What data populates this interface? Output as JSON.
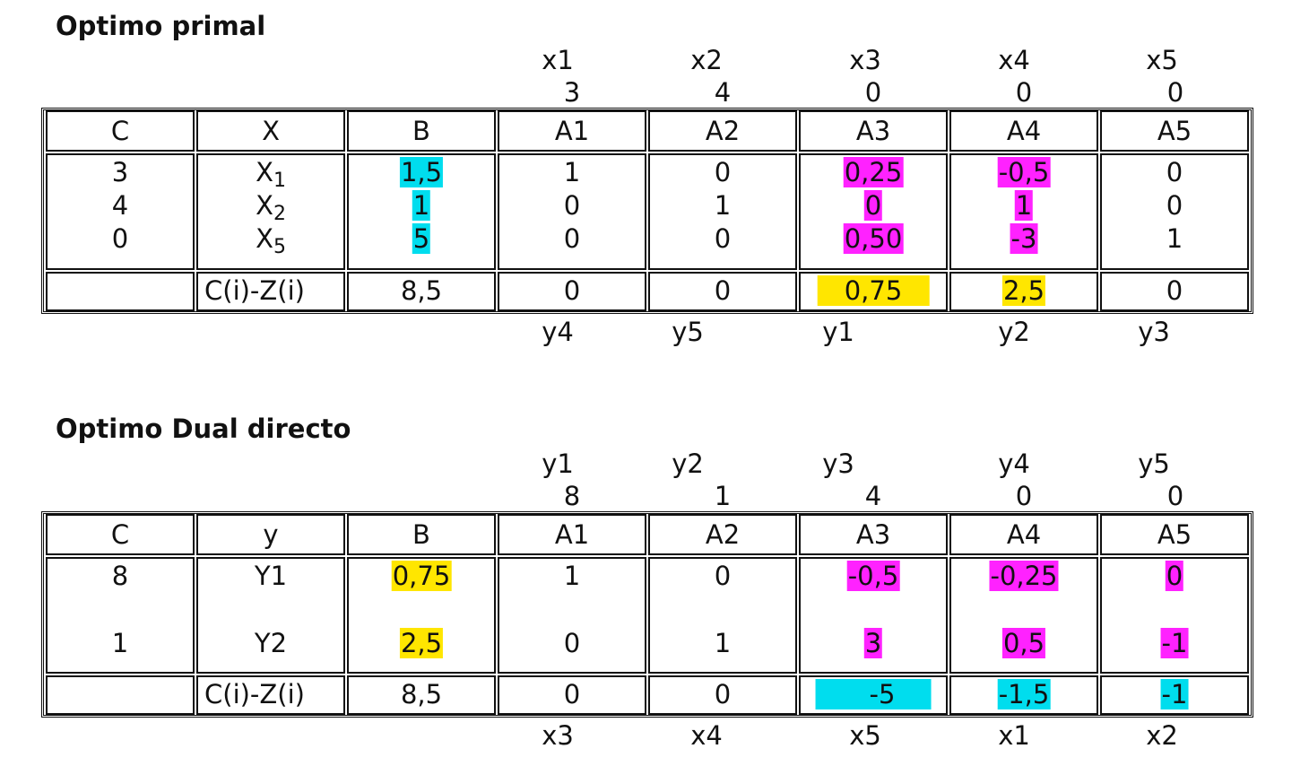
{
  "primal": {
    "title": "Optimo primal",
    "var_headers": [
      "x1",
      "x2",
      "x3",
      "x4",
      "x5"
    ],
    "costs": [
      "3",
      "4",
      "0",
      "0",
      "0"
    ],
    "columns": [
      "C",
      "X",
      "B",
      "A1",
      "A2",
      "A3",
      "A4",
      "A5"
    ],
    "basis": [
      {
        "c": "3",
        "var": "X",
        "sub": "1",
        "b": "1,5",
        "a": [
          "1",
          "0",
          "0,25",
          "-0,5",
          "0"
        ]
      },
      {
        "c": "4",
        "var": "X",
        "sub": "2",
        "b": "1",
        "a": [
          "0",
          "1",
          "0",
          "1",
          "0"
        ]
      },
      {
        "c": "0",
        "var": "X",
        "sub": "5",
        "b": "5",
        "a": [
          "0",
          "0",
          "0,50",
          "-3",
          "1"
        ]
      }
    ],
    "reduced": {
      "label": "C(i)-Z(i)",
      "b": "8,5",
      "a": [
        "0",
        "0",
        "0,75",
        "2,5",
        "0"
      ]
    },
    "dual_vars": [
      "y4",
      "y5",
      "y1",
      "y2",
      "y3"
    ]
  },
  "dual": {
    "title": "Optimo Dual directo",
    "var_headers": [
      "y1",
      "y2",
      "y3",
      "y4",
      "y5"
    ],
    "costs": [
      "8",
      "1",
      "4",
      "0",
      "0"
    ],
    "columns": [
      "C",
      "y",
      "B",
      "A1",
      "A2",
      "A3",
      "A4",
      "A5"
    ],
    "basis": [
      {
        "c": "8",
        "var": "Y1",
        "b": "0,75",
        "a": [
          "1",
          "0",
          "-0,5",
          "-0,25",
          "0"
        ]
      },
      {
        "c": "1",
        "var": "Y2",
        "b": "2,5",
        "a": [
          "0",
          "1",
          "3",
          "0,5",
          "-1"
        ]
      }
    ],
    "reduced": {
      "label": "C(i)-Z(i)",
      "b": "8,5",
      "a": [
        "0",
        "0",
        "-5",
        "-1,5",
        "-1"
      ]
    },
    "primal_vars": [
      "x3",
      "x4",
      "x5",
      "x1",
      "x2"
    ]
  },
  "colors": {
    "cyan": "#00ddee",
    "magenta": "#ff22ff",
    "yellow": "#ffe600"
  }
}
